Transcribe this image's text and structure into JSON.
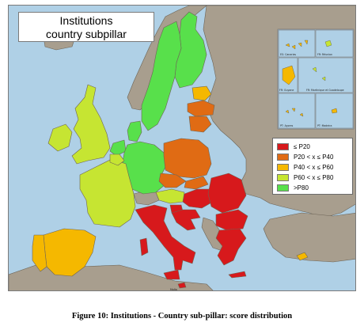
{
  "map": {
    "title_line1": "Institutions",
    "title_line2": "country subpillar"
  },
  "legend": {
    "items": [
      {
        "label": "≤ P20",
        "color": "#d7191c"
      },
      {
        "label": "P20 < x ≤ P40",
        "color": "#e06b14"
      },
      {
        "label": "P40 < x ≤ P60",
        "color": "#f5b800"
      },
      {
        "label": "P60 < x ≤ P80",
        "color": "#c6e532"
      },
      {
        "label": ">P80",
        "color": "#58e04b"
      }
    ]
  },
  "colors": {
    "sea": "#afd0e6",
    "non_eu_land": "#a89e8e",
    "border": "#6d6456"
  },
  "insets": {
    "canarias": "ES: Canarias",
    "reunion": "FR: Réunion",
    "guyane": "FR: Guyane",
    "martinique": "FR: Martinique et Guadeloupe",
    "acores": "PT: Açores",
    "madeira": "PT: Madeira"
  },
  "country_labels": {
    "malta": "Malta"
  },
  "caption": "Figure 10: Institutions - Country sub-pillar: score distribution"
}
